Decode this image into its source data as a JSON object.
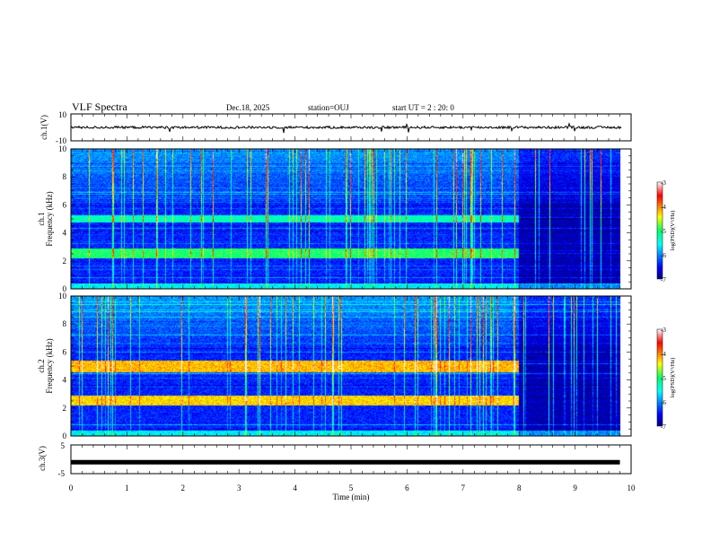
{
  "header": {
    "title": "VLF Spectra",
    "date": "Dec.18, 2025",
    "station": "station=OUJ",
    "start_ut": "start  UT =   2 : 20: 0"
  },
  "chart_data": {
    "type": "heatmap",
    "xlabel": "Time  (min)",
    "xlim": [
      0,
      10
    ],
    "x_ticks": [
      "0",
      "1",
      "2",
      "3",
      "4",
      "5",
      "6",
      "7",
      "8",
      "9",
      "10"
    ],
    "panels": [
      {
        "id": "ch1-waveform",
        "type": "line",
        "ylabel": "ch.1(V)",
        "ylim": [
          -10,
          10
        ],
        "y_ticks": [
          "10",
          "-10"
        ],
        "level": 0
      },
      {
        "id": "ch1-spectrogram",
        "type": "heatmap",
        "ylabel_line1": "ch.1",
        "ylabel_line2": "Frequency  (kHz)",
        "ylim": [
          0,
          10
        ],
        "y_ticks": [
          "0",
          "2",
          "4",
          "6",
          "8",
          "10"
        ],
        "data_end_min": 9.8,
        "change_min": 8.0,
        "bands_khz": [
          {
            "lo": 2.2,
            "hi": 2.9,
            "level": -5.0
          },
          {
            "lo": 4.8,
            "hi": 5.3,
            "level": -5.3
          }
        ],
        "colorbar": {
          "label": "log(PSD)(V²/Hz)",
          "range": [
            -7,
            -3
          ],
          "ticks": [
            "-3",
            "-4",
            "-5",
            "-6",
            "-7"
          ]
        }
      },
      {
        "id": "ch2-spectrogram",
        "type": "heatmap",
        "ylabel_line1": "ch.2",
        "ylabel_line2": "Frequency  (kHz)",
        "ylim": [
          0,
          10
        ],
        "y_ticks": [
          "0",
          "2",
          "4",
          "6",
          "8",
          "10"
        ],
        "data_end_min": 9.8,
        "change_min": 8.0,
        "bands_khz": [
          {
            "lo": 2.2,
            "hi": 2.9,
            "level": -4.3
          },
          {
            "lo": 4.6,
            "hi": 5.4,
            "level": -4.2
          }
        ],
        "colorbar": {
          "label": "log(PSD)(V²/Hz)",
          "range": [
            -7,
            -3
          ],
          "ticks": [
            "-3",
            "-4",
            "-5",
            "-6",
            "-7"
          ]
        }
      },
      {
        "id": "ch3-waveform",
        "type": "line",
        "ylabel": "ch.3(V)",
        "ylim": [
          -5,
          5
        ],
        "y_ticks": [
          "5",
          "-5"
        ],
        "level": -1
      }
    ]
  }
}
